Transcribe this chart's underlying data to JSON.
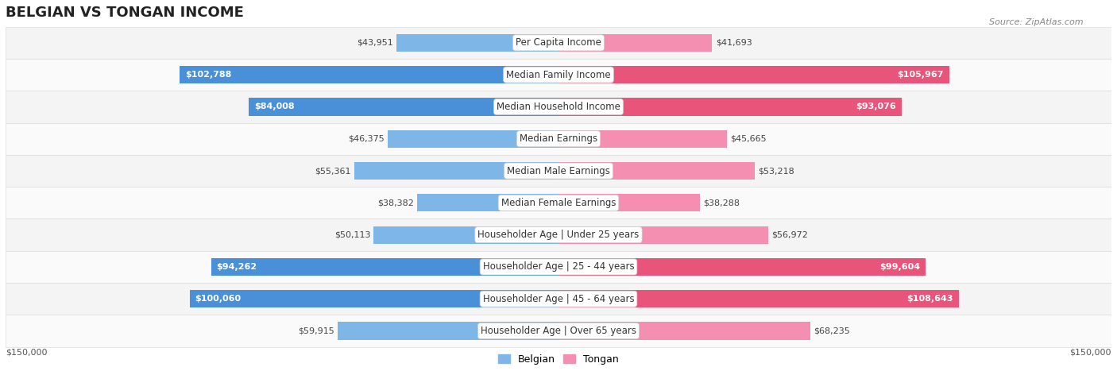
{
  "title": "BELGIAN VS TONGAN INCOME",
  "source": "Source: ZipAtlas.com",
  "categories": [
    "Per Capita Income",
    "Median Family Income",
    "Median Household Income",
    "Median Earnings",
    "Median Male Earnings",
    "Median Female Earnings",
    "Householder Age | Under 25 years",
    "Householder Age | 25 - 44 years",
    "Householder Age | 45 - 64 years",
    "Householder Age | Over 65 years"
  ],
  "belgian_values": [
    43951,
    102788,
    84008,
    46375,
    55361,
    38382,
    50113,
    94262,
    100060,
    59915
  ],
  "tongan_values": [
    41693,
    105967,
    93076,
    45665,
    53218,
    38288,
    56972,
    99604,
    108643,
    68235
  ],
  "max_val": 150000,
  "belgian_color": "#7EB6E8",
  "tongan_color": "#F48FB1",
  "belgian_dark_color": "#4A90D9",
  "tongan_dark_color": "#E9547A",
  "row_bg_even": "#F4F4F4",
  "row_bg_odd": "#FAFAFA",
  "background_color": "#FFFFFF",
  "title_fontsize": 13,
  "label_fontsize": 8.5,
  "value_fontsize": 8,
  "legend_fontsize": 9,
  "source_fontsize": 8
}
